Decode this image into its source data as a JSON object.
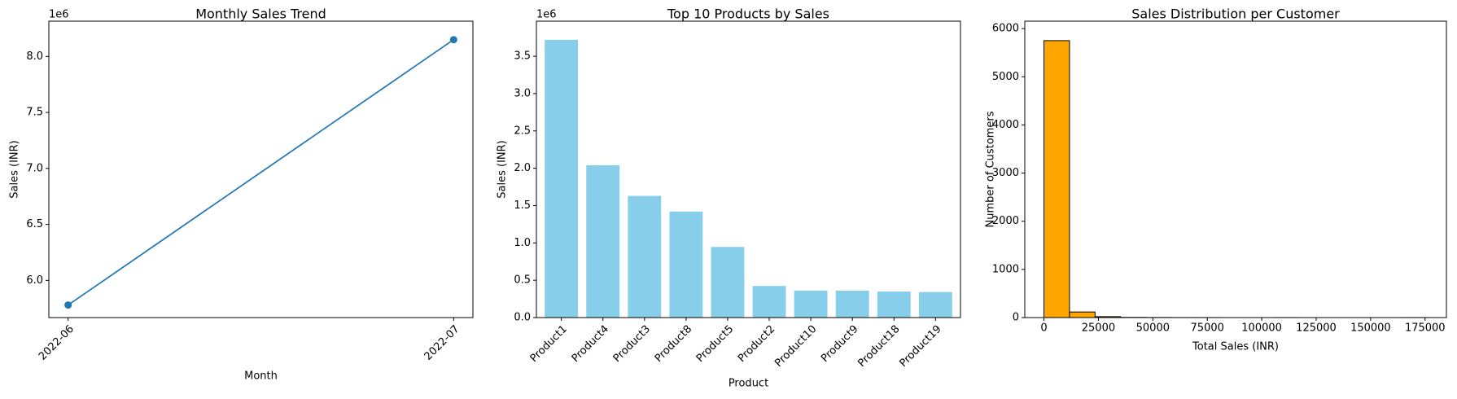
{
  "chart_data": [
    {
      "type": "line",
      "title": "Monthly Sales Trend",
      "x_label": "Month",
      "y_label": "Sales (INR)",
      "y_offset_text": "1e6",
      "categories": [
        "2022-06",
        "2022-07"
      ],
      "series": [
        {
          "name": "Sales",
          "color": "#1f77b4",
          "values": [
            5780000,
            8150000
          ]
        }
      ],
      "ylim": [
        5668000,
        8315000
      ],
      "yticks": [
        {
          "value": 6000000,
          "label": "6.0"
        },
        {
          "value": 6500000,
          "label": "6.5"
        },
        {
          "value": 7000000,
          "label": "7.0"
        },
        {
          "value": 7500000,
          "label": "7.5"
        },
        {
          "value": 8000000,
          "label": "8.0"
        }
      ]
    },
    {
      "type": "bar",
      "title": "Top 10 Products by Sales",
      "x_label": "Product",
      "y_label": "Sales (INR)",
      "y_offset_text": "1e6",
      "categories": [
        "Product1",
        "Product4",
        "Product3",
        "Product8",
        "Product5",
        "Product2",
        "Product10",
        "Product9",
        "Product18",
        "Product19"
      ],
      "values": [
        3720000,
        2040000,
        1630000,
        1420000,
        946000,
        423000,
        361000,
        360000,
        349000,
        342000
      ],
      "color": "#87ceeb",
      "ylim": [
        0,
        3970000
      ],
      "yticks": [
        {
          "value": 0,
          "label": "0.0"
        },
        {
          "value": 500000,
          "label": "0.5"
        },
        {
          "value": 1000000,
          "label": "1.0"
        },
        {
          "value": 1500000,
          "label": "1.5"
        },
        {
          "value": 2000000,
          "label": "2.0"
        },
        {
          "value": 2500000,
          "label": "2.5"
        },
        {
          "value": 3000000,
          "label": "3.0"
        },
        {
          "value": 3500000,
          "label": "3.5"
        }
      ]
    },
    {
      "type": "histogram",
      "title": "Sales Distribution per Customer",
      "x_label": "Total Sales (INR)",
      "y_label": "Number of Customers",
      "bins": [
        0,
        11735,
        23470,
        35205,
        46940,
        58675,
        70410,
        82145,
        93880,
        105615,
        117350,
        129085,
        140820,
        152555,
        164290,
        176025
      ],
      "values": [
        5750,
        116,
        19,
        4,
        2,
        1,
        1,
        0,
        0,
        1,
        0,
        0,
        0,
        0,
        1
      ],
      "color": "#ffa500",
      "edgecolor": "#000000",
      "xlim": [
        -8800,
        184800
      ],
      "xticks": [
        0,
        25000,
        50000,
        75000,
        100000,
        125000,
        150000,
        175000
      ],
      "ylim": [
        0,
        6154
      ],
      "yticks": [
        0,
        1000,
        2000,
        3000,
        4000,
        5000,
        6000
      ]
    }
  ]
}
